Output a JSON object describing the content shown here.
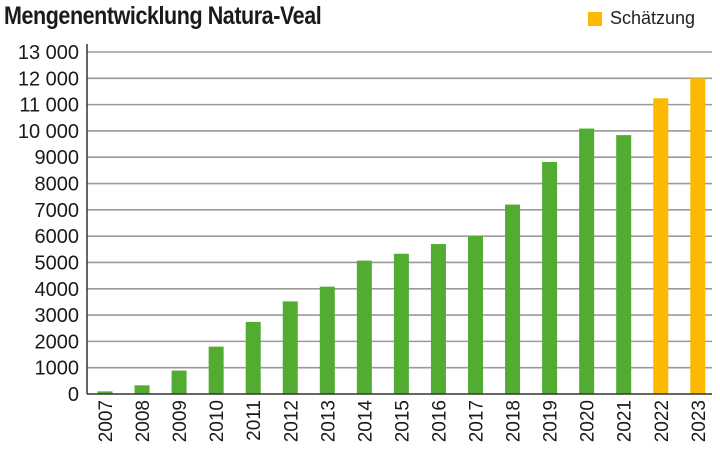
{
  "chart_data": {
    "type": "bar",
    "title": "Mengenentwicklung Natura-Veal",
    "xlabel": "",
    "ylabel": "",
    "ylim": [
      0,
      13000
    ],
    "yticks": [
      0,
      1000,
      2000,
      3000,
      4000,
      5000,
      6000,
      7000,
      8000,
      9000,
      10000,
      11000,
      12000,
      13000
    ],
    "ytick_labels": [
      "0",
      "1000",
      "2000",
      "3000",
      "4000",
      "5000",
      "6000",
      "7000",
      "8000",
      "9000",
      "10 000",
      "11 000",
      "12 000",
      "13 000"
    ],
    "grid": true,
    "legend_position": "top-right",
    "legend": [
      {
        "label": "Schätzung",
        "color": "#fbb900"
      }
    ],
    "categories": [
      "2007",
      "2008",
      "2009",
      "2010",
      "2011",
      "2012",
      "2013",
      "2014",
      "2015",
      "2016",
      "2017",
      "2018",
      "2019",
      "2020",
      "2021",
      "2022",
      "2023"
    ],
    "values": [
      100,
      330,
      890,
      1800,
      2740,
      3520,
      4080,
      5070,
      5330,
      5700,
      6000,
      7200,
      8820,
      10090,
      9840,
      11240,
      12000
    ],
    "estimate": [
      false,
      false,
      false,
      false,
      false,
      false,
      false,
      false,
      false,
      false,
      false,
      false,
      false,
      false,
      false,
      true,
      true
    ],
    "colors": {
      "actual": "#52ac32",
      "estimate": "#fbb900",
      "grid": "#9a9a9a",
      "axis": "#333333"
    }
  }
}
